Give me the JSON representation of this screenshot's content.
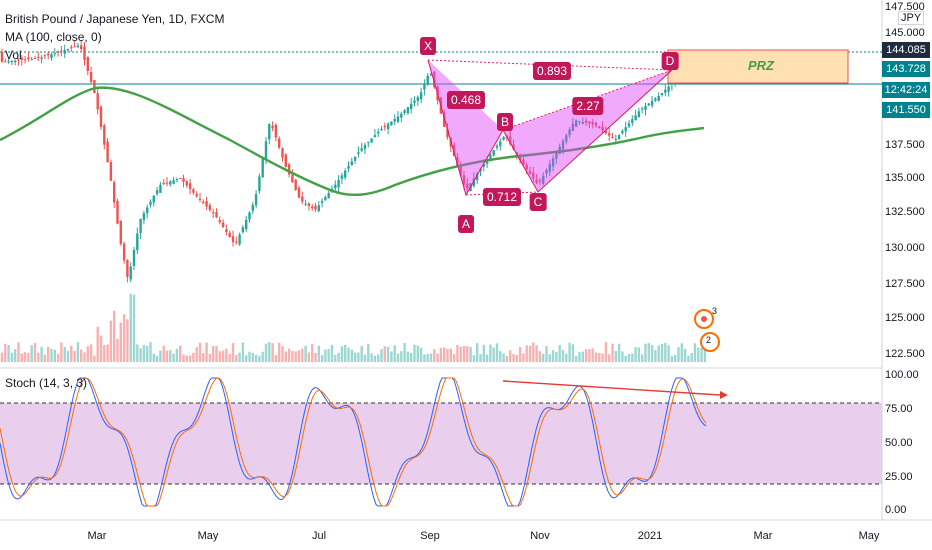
{
  "header": {
    "symbol_line": "British Pound / Japanese Yen, 1D, FXCM",
    "ma_line": "MA (100, close, 0)",
    "vol_label": "Vol"
  },
  "stoch": {
    "label": "Stoch (14, 3, 3)"
  },
  "currency": "JPY",
  "price_axis": [
    "147.500",
    "145.000",
    "137.500",
    "135.000",
    "132.500",
    "130.000",
    "127.500",
    "125.000",
    "122.500"
  ],
  "price_tags": [
    {
      "text": "144.085",
      "color": "#1f2b3e"
    },
    {
      "text": "143.728",
      "color": "#00838f"
    },
    {
      "text": "12:42:24",
      "color": "#00838f"
    },
    {
      "text": "141.550",
      "color": "#00838f"
    }
  ],
  "stoch_axis": [
    "100.00",
    "75.00",
    "50.00",
    "25.00",
    "0.00"
  ],
  "time_axis": [
    "Mar",
    "May",
    "Jul",
    "Sep",
    "Nov",
    "2021",
    "Mar",
    "May"
  ],
  "pattern": {
    "points": [
      "X",
      "A",
      "B",
      "C",
      "D"
    ],
    "ratios": [
      "0.893",
      "0.468",
      "2.27",
      "0.712"
    ],
    "zone_label": "PRZ"
  },
  "badges": [
    "3",
    "2"
  ],
  "colors": {
    "up": "#26a69a",
    "down": "#ef5350",
    "ma": "#43a047",
    "pattern": "#e040fb",
    "prz_fill": "#ffe0b2",
    "stoch_band": "#e1bee7"
  }
}
